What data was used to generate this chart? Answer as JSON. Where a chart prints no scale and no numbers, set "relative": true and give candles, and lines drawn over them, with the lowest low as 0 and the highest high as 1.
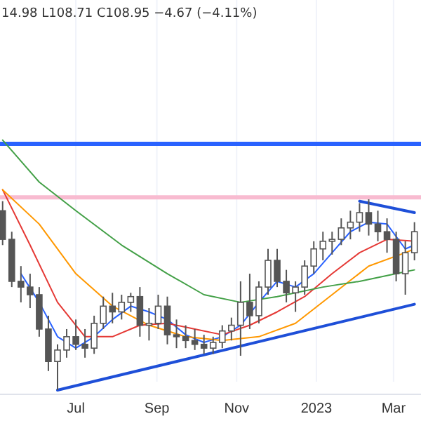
{
  "chart_data": {
    "type": "candlestick",
    "relative": true,
    "color": "#555555",
    "annotations": [
      "14.98 L108.71 C108.95 −4.67 (−4.11%)"
    ],
    "x": [
      "2022-05-06",
      "2022-05-13",
      "2022-05-20",
      "2022-05-27",
      "2022-06-03",
      "2022-06-10",
      "2022-06-17",
      "2022-06-24",
      "2022-07-01",
      "2022-07-08",
      "2022-07-15",
      "2022-07-22",
      "2022-07-29",
      "2022-08-05",
      "2022-08-12",
      "2022-08-19",
      "2022-08-26",
      "2022-09-02",
      "2022-09-09",
      "2022-09-16",
      "2022-09-23",
      "2022-09-30",
      "2022-10-07",
      "2022-10-14",
      "2022-10-21",
      "2022-10-28",
      "2022-11-04",
      "2022-11-11",
      "2022-11-18",
      "2022-11-25",
      "2022-12-02",
      "2022-12-09",
      "2022-12-16",
      "2022-12-23",
      "2022-12-30",
      "2023-01-06",
      "2023-01-13",
      "2023-01-20",
      "2023-01-27",
      "2023-02-03",
      "2023-02-10",
      "2023-02-17",
      "2023-02-24",
      "2023-03-03",
      "2023-03-10",
      "2023-03-17"
    ],
    "ohlc": [
      [
        0.94,
        0.99,
        0.76,
        0.79
      ],
      [
        0.79,
        0.83,
        0.54,
        0.57
      ],
      [
        0.57,
        0.65,
        0.46,
        0.54
      ],
      [
        0.54,
        0.61,
        0.43,
        0.5
      ],
      [
        0.5,
        0.54,
        0.28,
        0.32
      ],
      [
        0.32,
        0.39,
        0.1,
        0.15
      ],
      [
        0.15,
        0.24,
        0,
        0.21
      ],
      [
        0.21,
        0.32,
        0.17,
        0.28
      ],
      [
        0.28,
        0.37,
        0.21,
        0.24
      ],
      [
        0.24,
        0.32,
        0.17,
        0.22
      ],
      [
        0.22,
        0.39,
        0.19,
        0.35
      ],
      [
        0.35,
        0.49,
        0.32,
        0.44
      ],
      [
        0.44,
        0.51,
        0.35,
        0.41
      ],
      [
        0.41,
        0.5,
        0.37,
        0.46
      ],
      [
        0.46,
        0.51,
        0.41,
        0.49
      ],
      [
        0.49,
        0.54,
        0.28,
        0.34
      ],
      [
        0.34,
        0.43,
        0.26,
        0.35
      ],
      [
        0.35,
        0.5,
        0.32,
        0.44
      ],
      [
        0.44,
        0.49,
        0.24,
        0.29
      ],
      [
        0.29,
        0.37,
        0.22,
        0.28
      ],
      [
        0.28,
        0.34,
        0.22,
        0.26
      ],
      [
        0.26,
        0.32,
        0.21,
        0.24
      ],
      [
        0.24,
        0.29,
        0.19,
        0.22
      ],
      [
        0.22,
        0.28,
        0.19,
        0.25
      ],
      [
        0.25,
        0.34,
        0.22,
        0.31
      ],
      [
        0.31,
        0.38,
        0.26,
        0.34
      ],
      [
        0.34,
        0.57,
        0.18,
        0.46
      ],
      [
        0.46,
        0.61,
        0.32,
        0.39
      ],
      [
        0.39,
        0.57,
        0.35,
        0.54
      ],
      [
        0.54,
        0.74,
        0.5,
        0.68
      ],
      [
        0.68,
        0.74,
        0.54,
        0.57
      ],
      [
        0.57,
        0.63,
        0.46,
        0.51
      ],
      [
        0.51,
        0.57,
        0.41,
        0.54
      ],
      [
        0.54,
        0.68,
        0.5,
        0.65
      ],
      [
        0.65,
        0.78,
        0.61,
        0.74
      ],
      [
        0.74,
        0.83,
        0.68,
        0.78
      ],
      [
        0.78,
        0.83,
        0.71,
        0.79
      ],
      [
        0.79,
        0.9,
        0.76,
        0.85
      ],
      [
        0.85,
        0.94,
        0.79,
        0.88
      ],
      [
        0.88,
        0.98,
        0.83,
        0.93
      ],
      [
        0.93,
        1.0,
        0.81,
        0.87
      ],
      [
        0.87,
        0.94,
        0.78,
        0.83
      ],
      [
        0.83,
        0.9,
        0.72,
        0.79
      ],
      [
        0.79,
        0.83,
        0.57,
        0.61
      ],
      [
        0.61,
        0.78,
        0.5,
        0.72
      ],
      [
        0.72,
        0.88,
        0.68,
        0.83
      ]
    ],
    "series": [
      {
        "type": "line",
        "color": "#2962ff",
        "x": [
          "2022-05-20",
          "2022-06-03",
          "2022-06-17",
          "2022-07-01",
          "2022-07-15",
          "2022-07-29",
          "2022-08-12",
          "2022-08-26",
          "2022-09-09",
          "2022-09-23",
          "2022-10-07",
          "2022-10-21",
          "2022-11-04",
          "2022-11-18",
          "2022-12-02",
          "2022-12-16",
          "2022-12-30",
          "2023-01-13",
          "2023-01-27",
          "2023-02-10",
          "2023-02-24",
          "2023-03-10",
          "2023-03-17"
        ],
        "values": [
          0.61,
          0.46,
          0.28,
          0.22,
          0.28,
          0.37,
          0.44,
          0.41,
          0.37,
          0.29,
          0.25,
          0.28,
          0.34,
          0.46,
          0.57,
          0.54,
          0.61,
          0.72,
          0.83,
          0.88,
          0.87,
          0.74,
          0.76
        ]
      },
      {
        "type": "line",
        "color": "#e53935",
        "x": [
          "2022-05-06",
          "2022-05-27",
          "2022-06-17",
          "2022-07-08",
          "2022-07-29",
          "2022-08-19",
          "2022-09-09",
          "2022-09-30",
          "2022-10-21",
          "2022-11-11",
          "2022-12-02",
          "2022-12-23",
          "2023-01-13",
          "2023-02-03",
          "2023-02-24",
          "2023-03-17"
        ],
        "values": [
          1.05,
          0.76,
          0.46,
          0.28,
          0.28,
          0.34,
          0.35,
          0.32,
          0.29,
          0.34,
          0.41,
          0.49,
          0.61,
          0.72,
          0.79,
          0.78
        ]
      },
      {
        "type": "line",
        "color": "#ff9800",
        "x": [
          "2022-05-06",
          "2022-06-03",
          "2022-07-01",
          "2022-07-29",
          "2022-08-26",
          "2022-09-23",
          "2022-10-21",
          "2022-11-18",
          "2022-12-16",
          "2023-01-13",
          "2023-02-10",
          "2023-03-10",
          "2023-03-17"
        ],
        "values": [
          1.05,
          0.87,
          0.61,
          0.44,
          0.34,
          0.28,
          0.26,
          0.28,
          0.35,
          0.5,
          0.65,
          0.72,
          0.74
        ]
      },
      {
        "type": "line",
        "color": "#43a047",
        "x": [
          "2022-05-06",
          "2022-06-03",
          "2022-07-01",
          "2022-08-05",
          "2022-09-09",
          "2022-10-07",
          "2022-11-04",
          "2022-12-02",
          "2023-01-06",
          "2023-02-03",
          "2023-03-03",
          "2023-03-17"
        ],
        "values": [
          1.31,
          1.09,
          0.94,
          0.76,
          0.61,
          0.5,
          0.46,
          0.49,
          0.54,
          0.57,
          0.61,
          0.63
        ]
      },
      {
        "type": "line",
        "color": "#1e4fd8",
        "x": [
          "2022-06-17",
          "2023-03-17"
        ],
        "values": [
          0,
          0.45
        ]
      },
      {
        "type": "line",
        "color": "#1e4fd8",
        "x": [
          "2023-02-03",
          "2023-03-17"
        ],
        "values": [
          0.99,
          0.93
        ]
      }
    ],
    "ref_lines": [
      {
        "axis": "y",
        "value": 1.29,
        "color": "#2962ff"
      },
      {
        "axis": "y",
        "value": 1.01,
        "color": "#f8bbd0"
      }
    ],
    "xlim": [
      "2022-05-04",
      "2023-03-22"
    ],
    "xticks": [
      {
        "value": "2022-07-01",
        "label": "Jul"
      },
      {
        "value": "2022-09-01",
        "label": "Sep"
      },
      {
        "value": "2022-11-01",
        "label": "Nov"
      },
      {
        "value": "2023-01-01",
        "label": "2023"
      },
      {
        "value": "2023-03-01",
        "label": "Mar"
      }
    ],
    "grid": "x"
  }
}
